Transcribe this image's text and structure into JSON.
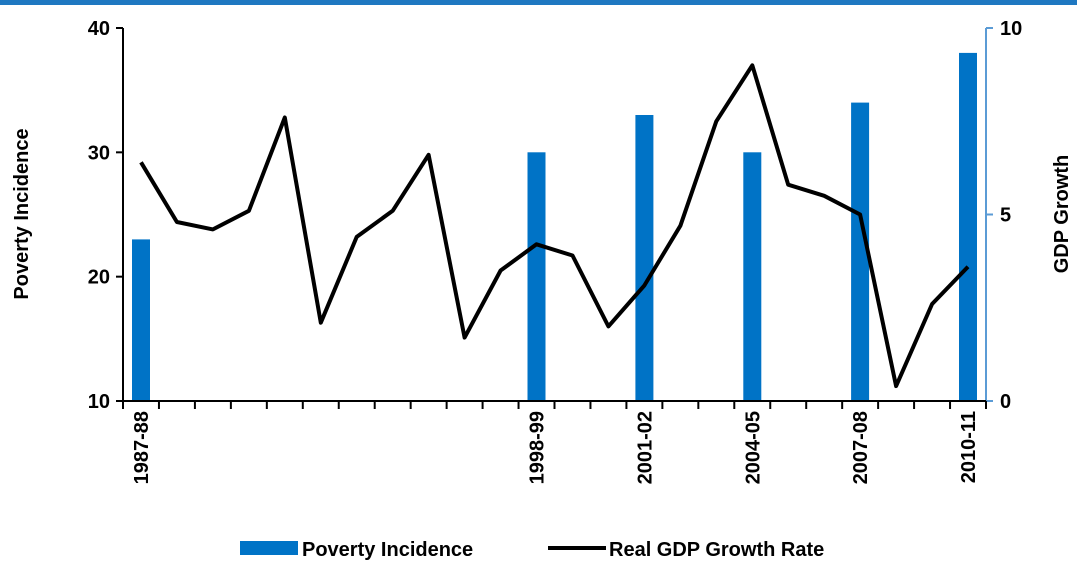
{
  "colors": {
    "bars": "#0073c6",
    "line": "#000000",
    "right_axis": "#5b9bd5",
    "top_rule": "#1f78c1"
  },
  "chart_data": {
    "type": "bar+line",
    "categories": [
      "1987-88",
      "",
      "",
      "",
      "",
      "",
      "",
      "",
      "",
      "",
      "",
      "1998-99",
      "",
      "",
      "2001-02",
      "",
      "",
      "2004-05",
      "",
      "",
      "2007-08",
      "",
      "",
      "2010-11"
    ],
    "series": [
      {
        "name": "Poverty Incidence",
        "type": "bar",
        "axis": "left",
        "values": [
          23,
          null,
          null,
          null,
          null,
          null,
          null,
          null,
          null,
          null,
          null,
          30,
          null,
          null,
          33,
          null,
          null,
          30,
          null,
          null,
          34,
          null,
          null,
          38
        ]
      },
      {
        "name": "Real GDP Growth Rate",
        "type": "line",
        "axis": "right",
        "values": [
          6.4,
          4.8,
          4.6,
          5.1,
          7.6,
          2.1,
          4.4,
          5.1,
          6.6,
          1.7,
          3.5,
          4.2,
          3.9,
          2.0,
          3.1,
          4.7,
          7.5,
          9.0,
          5.8,
          5.5,
          5.0,
          0.4,
          2.6,
          3.6
        ]
      }
    ],
    "ylabel": "Poverty  Incidence",
    "ylabel_right": "GDP Growth",
    "ylim": [
      10,
      40
    ],
    "ylim_right": [
      0,
      10
    ],
    "yticks": [
      10,
      20,
      30,
      40
    ],
    "yticks_right": [
      0,
      5,
      10
    ],
    "legend_position": "bottom",
    "grid": false
  }
}
